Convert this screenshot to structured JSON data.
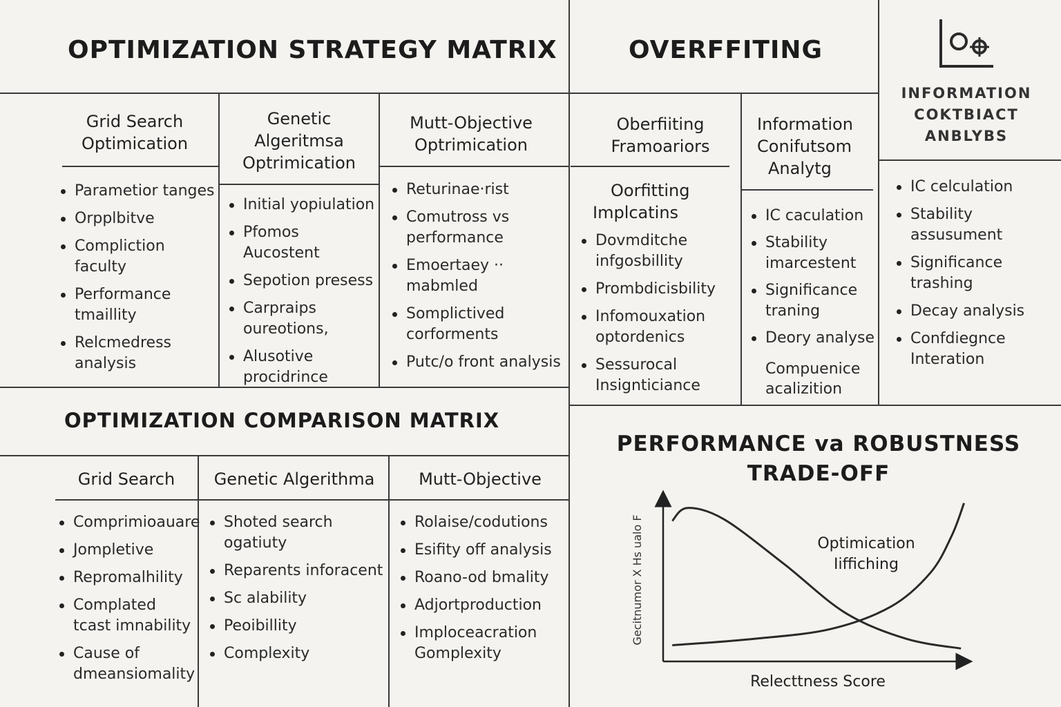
{
  "strategy_matrix": {
    "title": "OPTIMIZATION STRATEGY MATRIX",
    "columns": [
      {
        "heading": [
          "Grid Search",
          "Optimication"
        ],
        "items": [
          "Parametior tanges",
          "Orpplbitve",
          "Compliction faculty",
          "Performance tmaillity",
          "Relcmedress analysis"
        ]
      },
      {
        "heading": [
          "Genetic",
          "Algeritmsa",
          "Optrimication"
        ],
        "items": [
          "Initial yopiulation",
          "Pfomos Aucostent",
          "Sepotion presess",
          "Carpraips oureotions,",
          "Alusotive procidrince"
        ]
      },
      {
        "heading": [
          "Mutt-Objective",
          "Optrimication"
        ],
        "items": [
          "Returinae·rist",
          "Comutross vs performance",
          "Emoertaey ·· mabmled",
          "Somplictived corforments",
          "Putc/o front analysis"
        ]
      }
    ]
  },
  "overfitting": {
    "title": "OVERFFITING",
    "columns": [
      {
        "heading": [
          "Oberfiiting",
          "Framoariors"
        ],
        "subheading": [
          "Oorfitting",
          "Implcatins"
        ],
        "items": [
          "Dovmditche infgosbillity",
          "Prombdicisbility",
          "Infomouxation optordenics",
          "Sessurocal Insignticiance"
        ]
      },
      {
        "heading": [
          "Information",
          "Conifutsom",
          "Analytg"
        ],
        "items": [
          "IC caculation",
          "Stability imarcestent",
          "Significance traning",
          "Deory analyse"
        ],
        "trailing": [
          "Compuenice",
          "acalizition"
        ]
      }
    ]
  },
  "information_panel": {
    "icon": "chart-gears-icon",
    "title": [
      "INFORMATION",
      "COKTBIACT",
      "ANBLYBS"
    ],
    "items": [
      "IC celculation",
      "Stability assusument",
      "Significance trashing",
      "Decay analysis",
      "Confdiegnce Interation"
    ]
  },
  "comparison_matrix": {
    "title": "OPTIMIZATION COMPARISON MATRIX",
    "columns": [
      {
        "heading": "Grid Search",
        "items": [
          "Comprimioauare",
          "Jompletive",
          "Repromalhility",
          "Complated tcast imnability",
          "Cause of dmeansiomality"
        ]
      },
      {
        "heading": "Genetic Algerithma",
        "items": [
          "Shoted search ogatiuty",
          "Reparents inforacent",
          "Sc alability",
          "Peoibillity",
          "Complexity"
        ]
      },
      {
        "heading": "Mutt-Objective",
        "items": [
          "Rolaise/codutions",
          "Esifity off analysis",
          "Roano-od bmality",
          "Adjortproduction",
          "Imploceacration Gomplexity"
        ]
      }
    ]
  },
  "tradeoff": {
    "title": [
      "PERFORMANCE va ROBUSTNESS",
      "TRADE-OFF"
    ],
    "chart_data": {
      "type": "line",
      "xlabel": "Relecttness Score",
      "ylabel": "Gecitnumor X Hs ualo F",
      "annotation": [
        "Optimication",
        "Iiffiching"
      ],
      "grid": false,
      "series": [
        {
          "values": [
            [
              0.03,
              0.87
            ],
            [
              0.08,
              0.95
            ],
            [
              0.2,
              0.88
            ],
            [
              0.4,
              0.6
            ],
            [
              0.6,
              0.3
            ],
            [
              0.8,
              0.14
            ],
            [
              0.98,
              0.08
            ]
          ]
        },
        {
          "values": [
            [
              0.03,
              0.1
            ],
            [
              0.3,
              0.14
            ],
            [
              0.55,
              0.2
            ],
            [
              0.75,
              0.34
            ],
            [
              0.88,
              0.55
            ],
            [
              0.95,
              0.78
            ],
            [
              0.99,
              0.98
            ]
          ]
        }
      ]
    }
  }
}
